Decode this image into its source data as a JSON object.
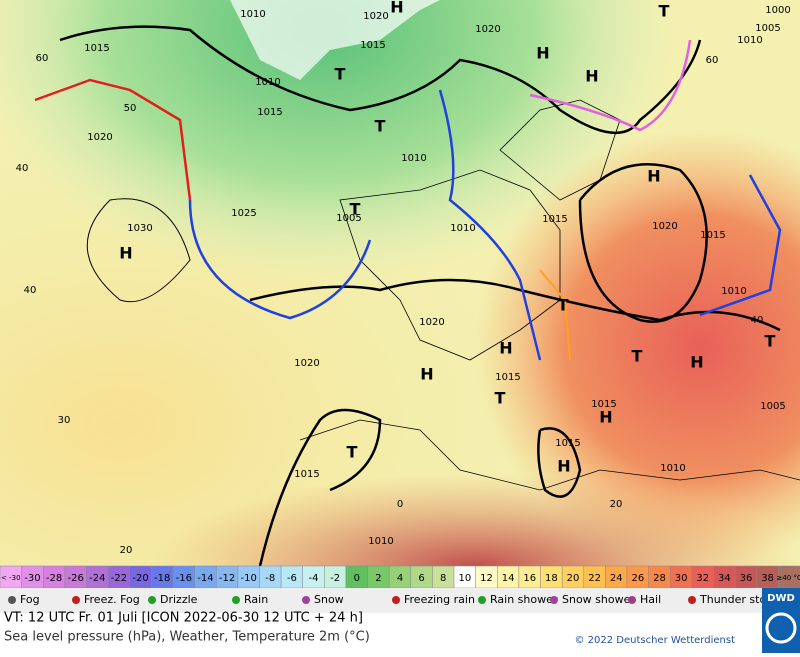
{
  "map": {
    "isobar_labels": [
      "1010",
      "1020",
      "1015",
      "1015",
      "1020",
      "1010",
      "1015",
      "1020",
      "1010",
      "1025",
      "1030",
      "1005",
      "1015",
      "1020",
      "1015",
      "1010",
      "1010",
      "1020",
      "1020",
      "1015",
      "1015",
      "1015",
      "1010",
      "1005",
      "1010",
      "1015",
      "1000",
      "1010",
      "1005"
    ],
    "centers": [
      "H",
      "H",
      "H",
      "H",
      "H",
      "H",
      "H",
      "H",
      "H",
      "T",
      "T",
      "T",
      "T",
      "T",
      "T",
      "T",
      "T",
      "H",
      "T"
    ],
    "temperature_labels": [
      "60",
      "50",
      "40",
      "40",
      "30",
      "20",
      "0",
      "60",
      "40",
      "20"
    ]
  },
  "color_scale": {
    "labels": [
      "< -30",
      "-30",
      "-28",
      "-26",
      "-24",
      "-22",
      "-20",
      "-18",
      "-16",
      "-14",
      "-12",
      "-10",
      "-8",
      "-6",
      "-4",
      "-2",
      "0",
      "2",
      "4",
      "6",
      "8",
      "10",
      "12",
      "14",
      "16",
      "18",
      "20",
      "22",
      "24",
      "26",
      "28",
      "30",
      "32",
      "34",
      "36",
      "38",
      "≥40 °C"
    ],
    "colors": [
      "#f0a8f0",
      "#e090e8",
      "#d880e0",
      "#c878d8",
      "#b070d8",
      "#9868d8",
      "#7868e0",
      "#6878e8",
      "#6890f0",
      "#78a8f0",
      "#88b8f0",
      "#98c8f8",
      "#a8d8f8",
      "#b8e8f8",
      "#c8f0f0",
      "#c8f0e0",
      "#60c060",
      "#78c868",
      "#98d078",
      "#b0d888",
      "#c8e098",
      "#ffffff",
      "#fffcc8",
      "#fff4a8",
      "#ffec90",
      "#ffe070",
      "#ffd060",
      "#ffc050",
      "#ffa848",
      "#ff9848",
      "#f88848",
      "#f07050",
      "#e86058",
      "#d85858",
      "#c85858",
      "#b86058",
      "#a87060"
    ]
  },
  "legend": [
    "Fog",
    "Freez. Fog",
    "Drizzle",
    "Rain",
    "Snow",
    "Freezing rain",
    "Rain shower",
    "Snow shower",
    "Hail",
    "Thunder storm"
  ],
  "footer": {
    "valid_time": "VT: 12 UTC Fr.  01 Juli [ICON 2022-06-30  12 UTC + 24 h]",
    "description": "Sea level pressure (hPa), Weather, Temperature 2m (°C)",
    "copyright": "© 2022 Deutscher Wetterdienst",
    "logo": "DWD"
  }
}
